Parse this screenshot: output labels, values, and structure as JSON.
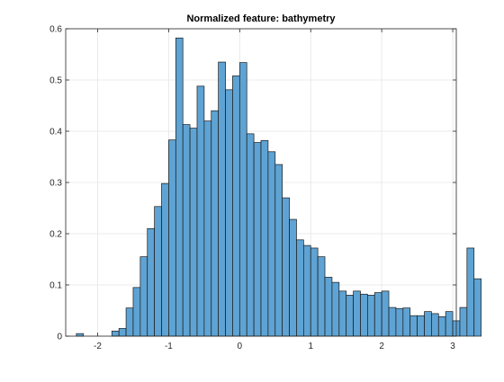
{
  "chart_data": {
    "type": "bar",
    "title": "Normalized feature: bathymetry",
    "xlabel": "",
    "ylabel": "",
    "xlim": [
      -2.45,
      3.05
    ],
    "ylim": [
      0,
      0.6
    ],
    "xticks": [
      -2,
      -1,
      0,
      1,
      2,
      3
    ],
    "yticks": [
      0,
      0.1,
      0.2,
      0.3,
      0.4,
      0.5,
      0.6
    ],
    "grid": true,
    "bin_width": 0.1,
    "bin_edges_start": -2.3,
    "values": [
      0.005,
      0,
      0,
      0,
      0,
      0.01,
      0.015,
      0.055,
      0.095,
      0.155,
      0.21,
      0.253,
      0.298,
      0.383,
      0.582,
      0.413,
      0.406,
      0.488,
      0.42,
      0.44,
      0.535,
      0.481,
      0.508,
      0.534,
      0.395,
      0.378,
      0.382,
      0.36,
      0.335,
      0.27,
      0.228,
      0.188,
      0.177,
      0.172,
      0.155,
      0.115,
      0.105,
      0.088,
      0.08,
      0.088,
      0.082,
      0.08,
      0.085,
      0.088,
      0.056,
      0.054,
      0.055,
      0.04,
      0.04,
      0.048,
      0.044,
      0.038,
      0.048,
      0.03,
      0.056,
      0.172,
      0.112
    ],
    "colors": {
      "bar_fill": "#5ea3d3",
      "bar_edge": "#1a1a1a",
      "grid": "#e5e5e5",
      "axis": "#262626",
      "background": "#ffffff"
    }
  }
}
